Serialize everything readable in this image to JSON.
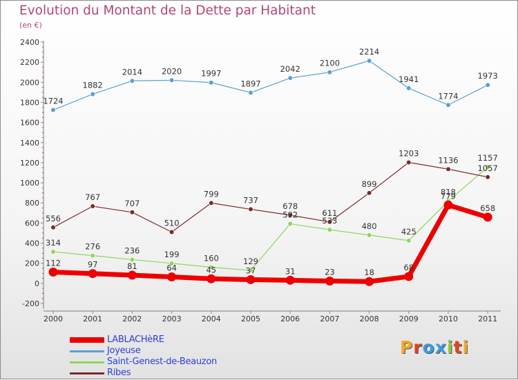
{
  "title": "Evolution du Montant de la Dette par Habitant",
  "unit": "(en €)",
  "logo": {
    "text": "Proxiti",
    "letter_colors": [
      "#f5a623",
      "#e8411e",
      "#3a9be0",
      "#3a9be0",
      "#8cc63f",
      "#e8411e",
      "#f5a623"
    ]
  },
  "chart_data": {
    "type": "line",
    "title": "Evolution du Montant de la Dette par Habitant",
    "ylabel": "(en €)",
    "xlabel": "",
    "ylim": [
      -200,
      2400
    ],
    "yticks": [
      -200,
      0,
      200,
      400,
      600,
      800,
      1000,
      1200,
      1400,
      1600,
      1800,
      2000,
      2200,
      2400
    ],
    "grid": false,
    "legend_position": "bottom-left",
    "categories": [
      "2000",
      "2001",
      "2002",
      "2003",
      "2004",
      "2005",
      "2006",
      "2007",
      "2008",
      "2009",
      "2010",
      "2011"
    ],
    "series": [
      {
        "name": "LABLACHèRE",
        "color": "#ee0000",
        "values": [
          112,
          97,
          81,
          64,
          45,
          37,
          31,
          23,
          18,
          68,
          779,
          658
        ]
      },
      {
        "name": "Joyeuse",
        "color": "#5a9fd4",
        "values": [
          1724,
          1882,
          2014,
          2020,
          1997,
          1897,
          2042,
          2100,
          2214,
          1941,
          1774,
          1973
        ]
      },
      {
        "name": "Saint-Genest-de-Beauzon",
        "color": "#8ed65a",
        "values": [
          314,
          276,
          236,
          199,
          160,
          129,
          592,
          533,
          480,
          425,
          818,
          1157
        ]
      },
      {
        "name": "Ribes",
        "color": "#7a2a2a",
        "values": [
          556,
          767,
          707,
          510,
          799,
          737,
          678,
          611,
          899,
          1203,
          1136,
          1057
        ]
      }
    ]
  }
}
